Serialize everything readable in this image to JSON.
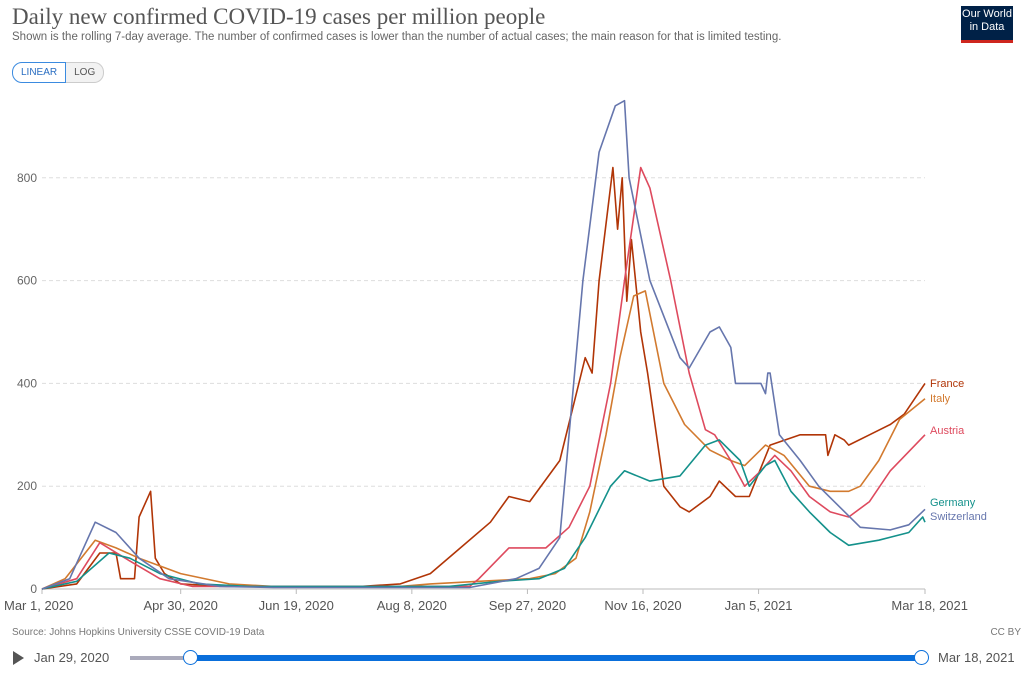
{
  "header": {
    "title": "Daily new confirmed COVID-19 cases per million people",
    "subtitle": "Shown is the rolling 7-day average. The number of confirmed cases is lower than the number of actual cases; the main reason for that is limited testing.",
    "logo": "Our World in Data"
  },
  "scale_toggle": {
    "linear": "LINEAR",
    "log": "LOG",
    "selected": "LINEAR"
  },
  "footer": {
    "source": "Source: Johns Hopkins University CSSE COVID-19 Data",
    "license": "CC BY"
  },
  "timeline": {
    "start": "Jan 29, 2020",
    "end": "Mar 18, 2021"
  },
  "chart_data": {
    "type": "line",
    "title": "Daily new confirmed COVID-19 cases per million people",
    "x_unit": "days since Mar 1, 2020",
    "xlim": [
      0,
      382
    ],
    "ylim": [
      0,
      950
    ],
    "yticks": [
      0,
      200,
      400,
      600,
      800
    ],
    "xticks": [
      {
        "day": 0,
        "label": "Mar 1, 2020"
      },
      {
        "day": 60,
        "label": "Apr 30, 2020"
      },
      {
        "day": 110,
        "label": "Jun 19, 2020"
      },
      {
        "day": 160,
        "label": "Aug 8, 2020"
      },
      {
        "day": 210,
        "label": "Sep 27, 2020"
      },
      {
        "day": 260,
        "label": "Nov 16, 2020"
      },
      {
        "day": 310,
        "label": "Jan 5, 2021"
      },
      {
        "day": 382,
        "label": "Mar 18, 2021"
      }
    ],
    "grid": true,
    "legend": "right-end labels",
    "series": [
      {
        "name": "France",
        "color": "#b13507",
        "points": [
          [
            0,
            0
          ],
          [
            15,
            10
          ],
          [
            25,
            70
          ],
          [
            32,
            70
          ],
          [
            34,
            20
          ],
          [
            40,
            20
          ],
          [
            42,
            140
          ],
          [
            47,
            190
          ],
          [
            49,
            60
          ],
          [
            53,
            30
          ],
          [
            60,
            10
          ],
          [
            80,
            5
          ],
          [
            138,
            5
          ],
          [
            155,
            10
          ],
          [
            168,
            30
          ],
          [
            181,
            80
          ],
          [
            194,
            130
          ],
          [
            202,
            180
          ],
          [
            211,
            170
          ],
          [
            224,
            250
          ],
          [
            235,
            450
          ],
          [
            238,
            420
          ],
          [
            241,
            600
          ],
          [
            247,
            820
          ],
          [
            249,
            700
          ],
          [
            251,
            800
          ],
          [
            253,
            560
          ],
          [
            255,
            680
          ],
          [
            259,
            500
          ],
          [
            262,
            420
          ],
          [
            269,
            200
          ],
          [
            276,
            160
          ],
          [
            280,
            150
          ],
          [
            289,
            180
          ],
          [
            293,
            210
          ],
          [
            300,
            180
          ],
          [
            306,
            180
          ],
          [
            315,
            280
          ],
          [
            328,
            300
          ],
          [
            339,
            300
          ],
          [
            340,
            260
          ],
          [
            343,
            300
          ],
          [
            347,
            290
          ],
          [
            349,
            280
          ],
          [
            358,
            300
          ],
          [
            367,
            320
          ],
          [
            373,
            340
          ],
          [
            382,
            400
          ]
        ]
      },
      {
        "name": "Italy",
        "color": "#d27a2f",
        "points": [
          [
            0,
            0
          ],
          [
            10,
            20
          ],
          [
            23,
            95
          ],
          [
            32,
            80
          ],
          [
            42,
            60
          ],
          [
            60,
            30
          ],
          [
            81,
            10
          ],
          [
            100,
            5
          ],
          [
            155,
            5
          ],
          [
            168,
            10
          ],
          [
            189,
            15
          ],
          [
            211,
            20
          ],
          [
            222,
            30
          ],
          [
            231,
            60
          ],
          [
            237,
            150
          ],
          [
            244,
            300
          ],
          [
            250,
            450
          ],
          [
            256,
            570
          ],
          [
            261,
            580
          ],
          [
            269,
            400
          ],
          [
            278,
            320
          ],
          [
            289,
            270
          ],
          [
            298,
            250
          ],
          [
            304,
            240
          ],
          [
            313,
            280
          ],
          [
            321,
            260
          ],
          [
            332,
            200
          ],
          [
            341,
            190
          ],
          [
            349,
            190
          ],
          [
            354,
            200
          ],
          [
            362,
            250
          ],
          [
            371,
            330
          ],
          [
            382,
            370
          ]
        ]
      },
      {
        "name": "Austria",
        "color": "#de4a5e",
        "points": [
          [
            0,
            0
          ],
          [
            15,
            20
          ],
          [
            25,
            90
          ],
          [
            36,
            60
          ],
          [
            51,
            20
          ],
          [
            65,
            5
          ],
          [
            185,
            5
          ],
          [
            189,
            20
          ],
          [
            202,
            80
          ],
          [
            218,
            80
          ],
          [
            228,
            120
          ],
          [
            237,
            200
          ],
          [
            246,
            400
          ],
          [
            252,
            600
          ],
          [
            259,
            820
          ],
          [
            263,
            780
          ],
          [
            272,
            600
          ],
          [
            280,
            420
          ],
          [
            287,
            310
          ],
          [
            291,
            300
          ],
          [
            298,
            250
          ],
          [
            304,
            200
          ],
          [
            311,
            230
          ],
          [
            317,
            260
          ],
          [
            324,
            230
          ],
          [
            332,
            180
          ],
          [
            341,
            150
          ],
          [
            349,
            140
          ],
          [
            358,
            170
          ],
          [
            367,
            230
          ],
          [
            382,
            300
          ]
        ]
      },
      {
        "name": "Germany",
        "color": "#14918b",
        "points": [
          [
            0,
            0
          ],
          [
            15,
            15
          ],
          [
            29,
            70
          ],
          [
            38,
            60
          ],
          [
            51,
            30
          ],
          [
            68,
            10
          ],
          [
            90,
            5
          ],
          [
            176,
            5
          ],
          [
            198,
            15
          ],
          [
            215,
            20
          ],
          [
            226,
            40
          ],
          [
            235,
            100
          ],
          [
            246,
            200
          ],
          [
            252,
            230
          ],
          [
            263,
            210
          ],
          [
            276,
            220
          ],
          [
            287,
            280
          ],
          [
            293,
            290
          ],
          [
            302,
            250
          ],
          [
            306,
            200
          ],
          [
            313,
            240
          ],
          [
            317,
            250
          ],
          [
            324,
            190
          ],
          [
            332,
            150
          ],
          [
            341,
            110
          ],
          [
            349,
            85
          ],
          [
            362,
            95
          ],
          [
            375,
            110
          ],
          [
            381,
            140
          ],
          [
            382,
            130
          ]
        ]
      },
      {
        "name": "Switzerland",
        "color": "#6676ad",
        "points": [
          [
            0,
            0
          ],
          [
            12,
            20
          ],
          [
            23,
            130
          ],
          [
            32,
            110
          ],
          [
            42,
            60
          ],
          [
            55,
            20
          ],
          [
            77,
            5
          ],
          [
            100,
            3
          ],
          [
            185,
            3
          ],
          [
            205,
            20
          ],
          [
            215,
            40
          ],
          [
            224,
            100
          ],
          [
            234,
            600
          ],
          [
            241,
            850
          ],
          [
            248,
            940
          ],
          [
            252,
            950
          ],
          [
            254,
            800
          ],
          [
            263,
            600
          ],
          [
            276,
            450
          ],
          [
            280,
            430
          ],
          [
            289,
            500
          ],
          [
            293,
            510
          ],
          [
            298,
            470
          ],
          [
            300,
            400
          ],
          [
            311,
            400
          ],
          [
            313,
            380
          ],
          [
            314,
            420
          ],
          [
            315,
            420
          ],
          [
            319,
            300
          ],
          [
            328,
            250
          ],
          [
            336,
            200
          ],
          [
            345,
            160
          ],
          [
            354,
            120
          ],
          [
            367,
            115
          ],
          [
            375,
            125
          ],
          [
            382,
            155
          ]
        ]
      }
    ]
  }
}
